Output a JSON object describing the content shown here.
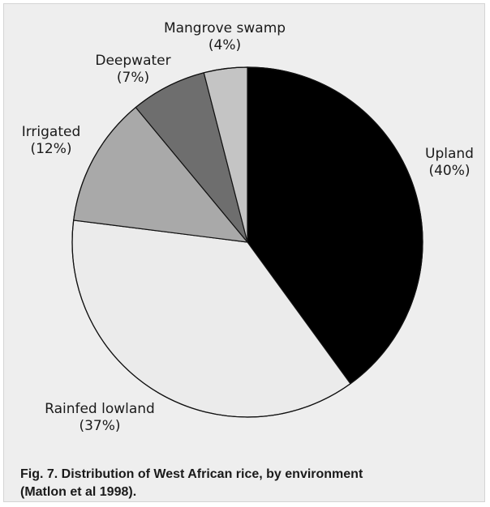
{
  "chart_data": {
    "type": "pie",
    "title": "",
    "slices": [
      {
        "label": "Upland",
        "percent_label": "(40%)",
        "value": 40,
        "color": "#000000"
      },
      {
        "label": "Rainfed lowland",
        "percent_label": "(37%)",
        "value": 37,
        "color": "#ebebeb"
      },
      {
        "label": "Irrigated",
        "percent_label": "(12%)",
        "value": 12,
        "color": "#a9a9a9"
      },
      {
        "label": "Deepwater",
        "percent_label": "(7%)",
        "value": 7,
        "color": "#6e6e6e"
      },
      {
        "label": "Mangrove swamp",
        "percent_label": "(4%)",
        "value": 4,
        "color": "#c4c4c4"
      }
    ],
    "start": "12 o'clock",
    "direction": "clockwise"
  },
  "caption": {
    "line1": "Fig. 7. Distribution of West African rice, by environment",
    "line2": "(Matlon et al 1998)."
  }
}
